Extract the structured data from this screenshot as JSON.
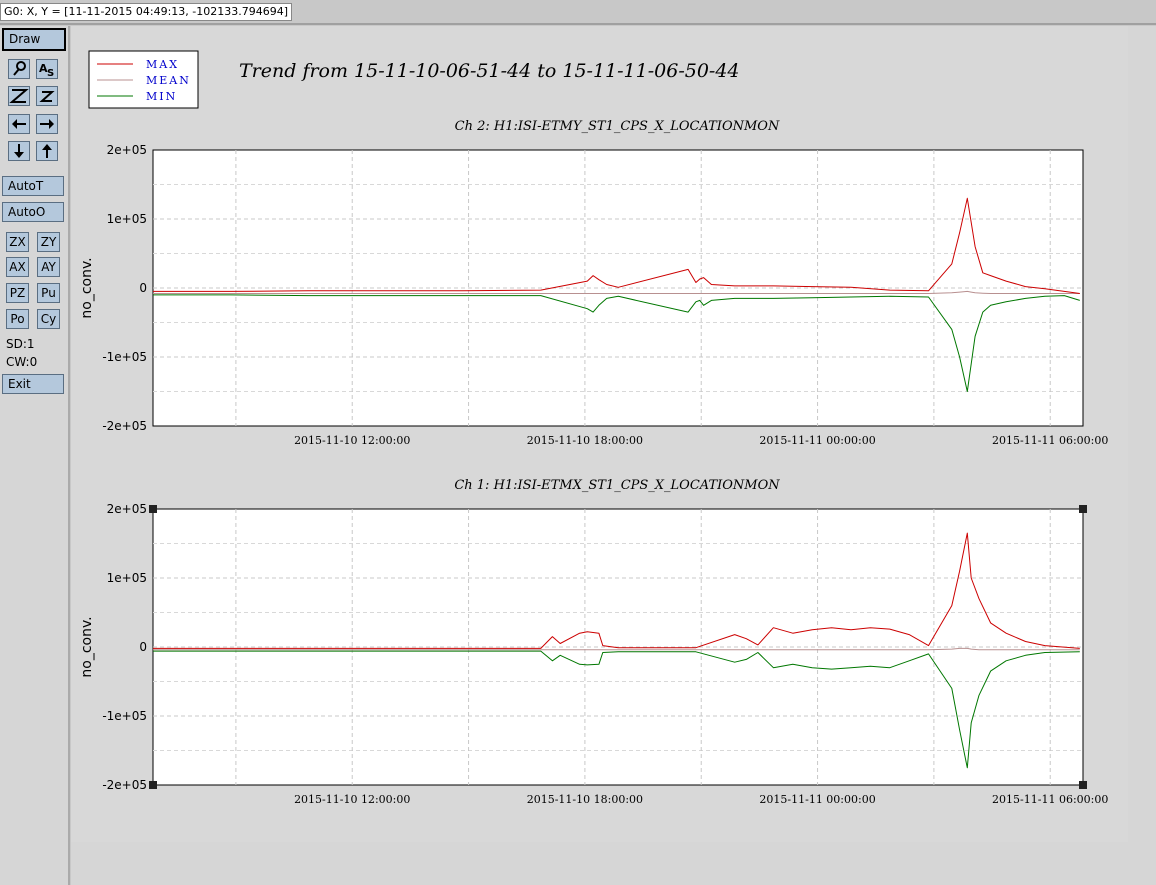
{
  "status": {
    "text": "G0: X, Y = [11-11-2015 04:49:13, -102133.794694]"
  },
  "toolbar": {
    "draw": "Draw",
    "autot": "AutoT",
    "autoo": "AutoO",
    "zx": "ZX",
    "zy": "ZY",
    "ax": "AX",
    "ay": "AY",
    "pz": "PZ",
    "pu": "Pu",
    "po": "Po",
    "cy": "Cy",
    "sd": "SD:1",
    "cw": "CW:0",
    "exit": "Exit"
  },
  "colors": {
    "max": "#cc0000",
    "mean": "#b89090",
    "min": "#007700"
  },
  "legend": [
    "MAX",
    "MEAN",
    "MIN"
  ],
  "trend_title": "Trend from 15-11-10-06-51-44 to 15-11-11-06-50-44",
  "chart_data": [
    {
      "type": "line",
      "title": "Ch 2: H1:ISI-ETMY_ST1_CPS_X_LOCATIONMON",
      "ylabel": "no_conv.",
      "ylim": [
        -200000,
        200000
      ],
      "yticks": [
        "2e+05",
        "1e+05",
        "0",
        "-1e+05",
        "-2e+05"
      ],
      "xlim": [
        "2015-11-10 06:51:44",
        "2015-11-11 06:50:44"
      ],
      "xticks": [
        "2015-11-10 12:00:00",
        "2015-11-10 18:00:00",
        "2015-11-11 00:00:00",
        "2015-11-11 06:00:00"
      ],
      "x_hours": [
        0,
        2,
        4,
        6,
        8,
        10,
        11.2,
        11.35,
        11.5,
        11.7,
        12,
        13.8,
        14.0,
        14.1,
        14.2,
        14.4,
        15.0,
        16.0,
        17.0,
        18.0,
        19.0,
        20.0,
        20.6,
        20.8,
        21.0,
        21.1,
        21.2,
        21.4,
        21.6,
        22.0,
        22.5,
        23.0,
        23.5,
        23.9
      ],
      "series": [
        {
          "name": "MAX",
          "values": [
            -5000,
            -5000,
            -4000,
            -4000,
            -4000,
            -3000,
            10000,
            18000,
            12000,
            5000,
            1000,
            27000,
            8000,
            13000,
            15000,
            5000,
            3000,
            3000,
            2000,
            1000,
            -3000,
            -4000,
            35000,
            80000,
            130000,
            95000,
            60000,
            22000,
            18000,
            10000,
            2000,
            -1000,
            -5000,
            -8000
          ]
        },
        {
          "name": "MEAN",
          "values": [
            -8000,
            -8000,
            -8000,
            -8000,
            -8000,
            -8000,
            -8000,
            -8000,
            -8000,
            -8000,
            -8000,
            -8000,
            -8000,
            -8000,
            -8000,
            -8000,
            -8000,
            -8000,
            -8000,
            -8000,
            -8000,
            -8000,
            -7000,
            -6000,
            -5000,
            -6000,
            -7000,
            -7500,
            -8000,
            -8000,
            -8000,
            -8000,
            -8000,
            -8000
          ]
        },
        {
          "name": "MIN",
          "values": [
            -10000,
            -10000,
            -11000,
            -11000,
            -11000,
            -11000,
            -30000,
            -35000,
            -25000,
            -15000,
            -12000,
            -35000,
            -20000,
            -18000,
            -25000,
            -18000,
            -15000,
            -15000,
            -14000,
            -13000,
            -12000,
            -13000,
            -60000,
            -100000,
            -150000,
            -110000,
            -70000,
            -35000,
            -25000,
            -20000,
            -15000,
            -12000,
            -11000,
            -18000
          ]
        }
      ]
    },
    {
      "type": "line",
      "title": "Ch 1: H1:ISI-ETMX_ST1_CPS_X_LOCATIONMON",
      "ylabel": "no_conv.",
      "ylim": [
        -200000,
        200000
      ],
      "yticks": [
        "2e+05",
        "1e+05",
        "0",
        "-1e+05",
        "-2e+05"
      ],
      "xlim": [
        "2015-11-10 06:51:44",
        "2015-11-11 06:50:44"
      ],
      "xticks": [
        "2015-11-10 12:00:00",
        "2015-11-10 18:00:00",
        "2015-11-11 00:00:00",
        "2015-11-11 06:00:00"
      ],
      "x_hours": [
        0,
        4,
        8,
        10,
        10.3,
        10.5,
        11.0,
        11.2,
        11.5,
        11.6,
        12,
        14,
        15.0,
        15.3,
        15.6,
        16.0,
        16.5,
        17.0,
        17.5,
        18.0,
        18.5,
        19.0,
        19.5,
        20.0,
        20.6,
        20.8,
        21.0,
        21.1,
        21.3,
        21.6,
        22.0,
        22.5,
        23.0,
        23.9
      ],
      "series": [
        {
          "name": "MAX",
          "values": [
            -2000,
            -2000,
            -2000,
            -2000,
            15000,
            5000,
            20000,
            22000,
            20000,
            2000,
            -1000,
            -1000,
            18000,
            12000,
            3000,
            28000,
            20000,
            25000,
            28000,
            25000,
            28000,
            26000,
            18000,
            2000,
            60000,
            110000,
            165000,
            100000,
            70000,
            35000,
            20000,
            8000,
            2000,
            -2000
          ]
        },
        {
          "name": "MEAN",
          "values": [
            -4000,
            -4000,
            -4000,
            -4000,
            -4000,
            -4000,
            -4000,
            -4000,
            -4000,
            -4000,
            -4000,
            -4000,
            -4000,
            -4000,
            -4000,
            -4000,
            -4000,
            -4000,
            -4000,
            -4000,
            -4000,
            -4000,
            -4000,
            -4000,
            -3000,
            -2000,
            -2000,
            -3000,
            -4000,
            -4000,
            -4000,
            -4000,
            -4000,
            -4000
          ]
        },
        {
          "name": "MIN",
          "values": [
            -6000,
            -6000,
            -6000,
            -6000,
            -20000,
            -12000,
            -25000,
            -26000,
            -25000,
            -8000,
            -7000,
            -7000,
            -22000,
            -18000,
            -8000,
            -30000,
            -25000,
            -30000,
            -32000,
            -30000,
            -28000,
            -30000,
            -20000,
            -10000,
            -60000,
            -120000,
            -175000,
            -110000,
            -70000,
            -35000,
            -20000,
            -12000,
            -8000,
            -7000
          ]
        }
      ]
    }
  ]
}
